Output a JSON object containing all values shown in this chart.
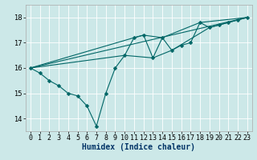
{
  "xlabel": "Humidex (Indice chaleur)",
  "bg_color": "#cce8e8",
  "grid_color": "#ffffff",
  "line_color": "#006666",
  "xlim": [
    -0.5,
    23.5
  ],
  "ylim": [
    13.5,
    18.5
  ],
  "yticks": [
    14,
    15,
    16,
    17,
    18
  ],
  "xticks": [
    0,
    1,
    2,
    3,
    4,
    5,
    6,
    7,
    8,
    9,
    10,
    11,
    12,
    13,
    14,
    15,
    16,
    17,
    18,
    19,
    20,
    21,
    22,
    23
  ],
  "series1": [
    [
      0,
      16.0
    ],
    [
      1,
      15.8
    ],
    [
      2,
      15.5
    ],
    [
      3,
      15.3
    ],
    [
      4,
      15.0
    ],
    [
      5,
      14.9
    ],
    [
      6,
      14.5
    ],
    [
      7,
      13.7
    ],
    [
      8,
      15.0
    ],
    [
      9,
      16.0
    ],
    [
      10,
      16.5
    ],
    [
      11,
      17.2
    ],
    [
      12,
      17.3
    ],
    [
      13,
      16.4
    ],
    [
      14,
      17.2
    ],
    [
      15,
      16.7
    ],
    [
      16,
      16.9
    ],
    [
      17,
      17.0
    ],
    [
      18,
      17.8
    ],
    [
      19,
      17.6
    ],
    [
      20,
      17.7
    ],
    [
      21,
      17.8
    ],
    [
      22,
      17.9
    ],
    [
      23,
      18.0
    ]
  ],
  "series2": [
    [
      0,
      16.0
    ],
    [
      23,
      18.0
    ]
  ],
  "series3": [
    [
      0,
      16.0
    ],
    [
      11,
      17.2
    ],
    [
      12,
      17.3
    ],
    [
      14,
      17.2
    ],
    [
      18,
      17.8
    ],
    [
      23,
      18.0
    ]
  ],
  "series4": [
    [
      0,
      16.0
    ],
    [
      10,
      16.5
    ],
    [
      13,
      16.4
    ],
    [
      15,
      16.7
    ],
    [
      19,
      17.6
    ],
    [
      20,
      17.7
    ],
    [
      22,
      17.9
    ],
    [
      23,
      18.0
    ]
  ],
  "tick_fontsize": 6,
  "xlabel_fontsize": 7,
  "marker_size": 2.5,
  "line_width": 0.8
}
